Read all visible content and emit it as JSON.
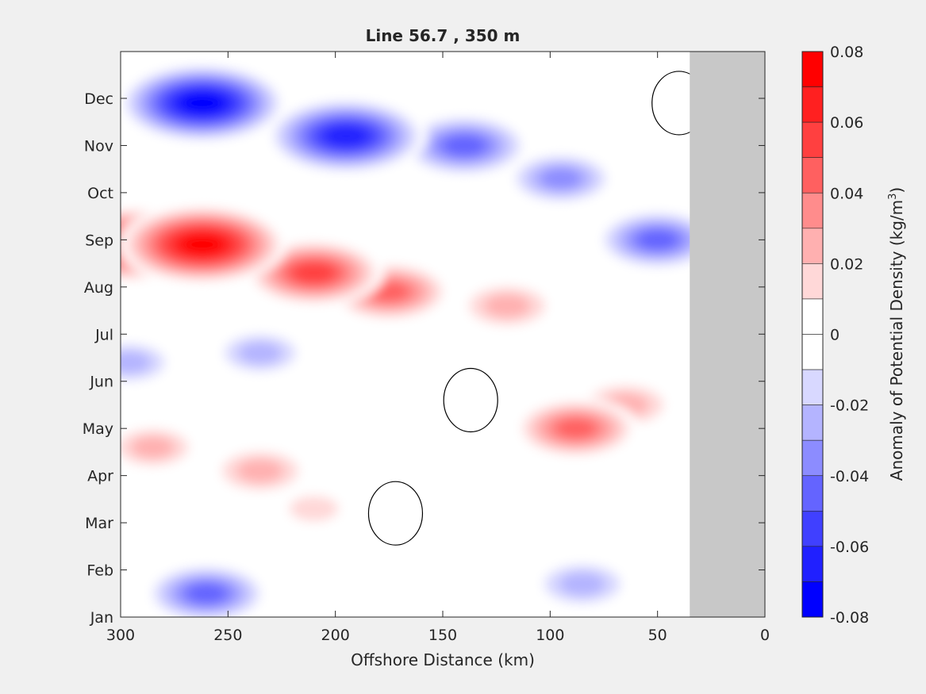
{
  "chart_data": {
    "type": "heatmap",
    "title": "Line 56.7 , 350 m",
    "xlabel": "Offshore Distance (km)",
    "xlim": [
      300,
      0
    ],
    "x_ticks": [
      300,
      250,
      200,
      150,
      100,
      50,
      0
    ],
    "y_tick_labels": [
      "Jan",
      "Feb",
      "Mar",
      "Apr",
      "May",
      "Jun",
      "Jul",
      "Aug",
      "Sep",
      "Oct",
      "Nov",
      "Dec"
    ],
    "no_data_x_range": [
      35,
      0
    ],
    "no_data_color": "#c8c8c8",
    "colorbar": {
      "label_prefix": "Anomaly of Potential Density (kg/m",
      "label_superscript": "3",
      "label_suffix": ")",
      "range": [
        -0.08,
        0.08
      ],
      "tick_values": [
        0.08,
        0.06,
        0.04,
        0.02,
        0,
        -0.02,
        -0.04,
        -0.06,
        -0.08
      ],
      "tick_labels": [
        "0.08",
        "0.06",
        "0.04",
        "0.02",
        "0",
        "-0.02",
        "-0.04",
        "-0.06",
        "-0.08"
      ],
      "levels": [
        {
          "min": 0.07,
          "max": 0.08,
          "color": "#ff0000"
        },
        {
          "min": 0.06,
          "max": 0.07,
          "color": "#ff2020"
        },
        {
          "min": 0.05,
          "max": 0.06,
          "color": "#ff4040"
        },
        {
          "min": 0.04,
          "max": 0.05,
          "color": "#ff6060"
        },
        {
          "min": 0.03,
          "max": 0.04,
          "color": "#ff8c8c"
        },
        {
          "min": 0.02,
          "max": 0.03,
          "color": "#ffb0b0"
        },
        {
          "min": 0.01,
          "max": 0.02,
          "color": "#ffd8d8"
        },
        {
          "min": 0.0,
          "max": 0.01,
          "color": "#ffffff"
        },
        {
          "min": -0.01,
          "max": 0.0,
          "color": "#ffffff"
        },
        {
          "min": -0.02,
          "max": -0.01,
          "color": "#d8d8ff"
        },
        {
          "min": -0.03,
          "max": -0.02,
          "color": "#b4b4ff"
        },
        {
          "min": -0.04,
          "max": -0.03,
          "color": "#8c8cff"
        },
        {
          "min": -0.05,
          "max": -0.04,
          "color": "#6464ff"
        },
        {
          "min": -0.06,
          "max": -0.05,
          "color": "#4040ff"
        },
        {
          "min": -0.07,
          "max": -0.06,
          "color": "#2020ff"
        },
        {
          "min": -0.08,
          "max": -0.07,
          "color": "#0000ff"
        }
      ]
    },
    "features": [
      {
        "month": 11.9,
        "x": 262,
        "value": -0.075
      },
      {
        "month": 11.2,
        "x": 195,
        "value": -0.07
      },
      {
        "month": 11.0,
        "x": 140,
        "value": -0.05
      },
      {
        "month": 10.3,
        "x": 95,
        "value": -0.035
      },
      {
        "month": 9.0,
        "x": 50,
        "value": -0.045
      },
      {
        "month": 11.9,
        "x": 40,
        "value": 0.0
      },
      {
        "month": 8.9,
        "x": 262,
        "value": 0.075
      },
      {
        "month": 8.9,
        "x": 295,
        "value": 0.07
      },
      {
        "month": 8.3,
        "x": 210,
        "value": 0.055
      },
      {
        "month": 7.9,
        "x": 175,
        "value": 0.045
      },
      {
        "month": 7.6,
        "x": 120,
        "value": 0.03
      },
      {
        "month": 6.6,
        "x": 190,
        "value": 0.012
      },
      {
        "month": 6.6,
        "x": 235,
        "value": -0.025
      },
      {
        "month": 6.4,
        "x": 296,
        "value": -0.025
      },
      {
        "month": 5.0,
        "x": 88,
        "value": 0.045
      },
      {
        "month": 5.5,
        "x": 65,
        "value": 0.03
      },
      {
        "month": 4.1,
        "x": 235,
        "value": 0.03
      },
      {
        "month": 4.6,
        "x": 285,
        "value": 0.025
      },
      {
        "month": 4.5,
        "x": 150,
        "value": 0.01
      },
      {
        "month": 3.3,
        "x": 210,
        "value": 0.015
      },
      {
        "month": 3.2,
        "x": 172,
        "value": 0.0
      },
      {
        "month": 5.6,
        "x": 137,
        "value": 0.0
      },
      {
        "month": 1.7,
        "x": 85,
        "value": -0.03
      },
      {
        "month": 1.5,
        "x": 260,
        "value": -0.045
      },
      {
        "month": 1.3,
        "x": 160,
        "value": 0.012
      }
    ]
  }
}
